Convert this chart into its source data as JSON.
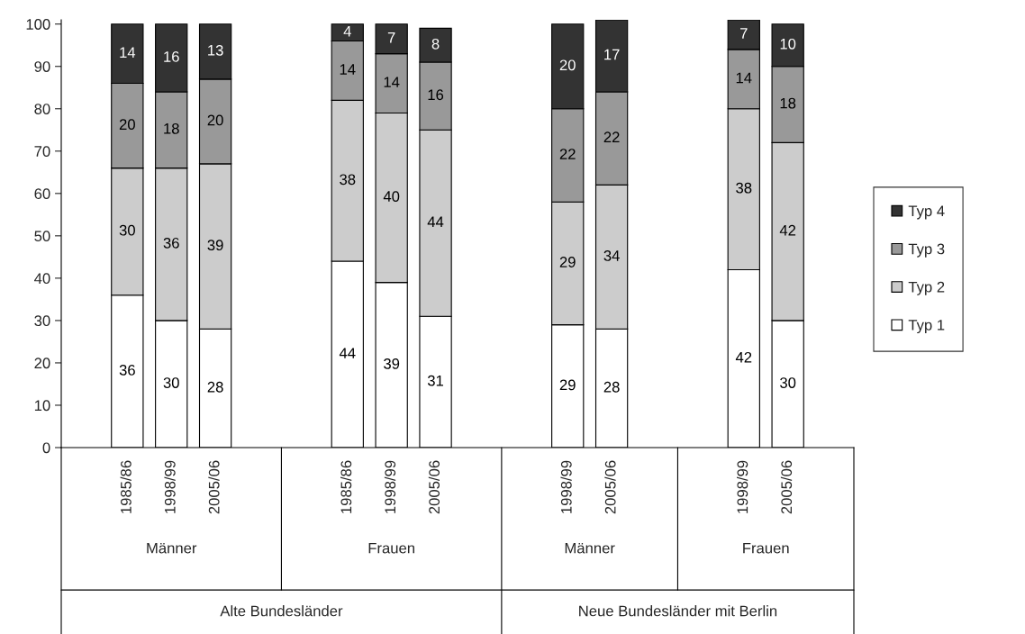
{
  "chart_data": {
    "type": "bar",
    "stacked": true,
    "data_labels": true,
    "legend": "right",
    "grid": false,
    "categories": [
      null,
      "1985/86",
      "1998/99",
      "2005/06",
      null,
      null,
      "1985/86",
      "1998/99",
      "2005/06",
      null,
      null,
      "1998/99",
      "2005/06",
      null,
      null,
      "1998/99",
      "2005/06",
      null
    ],
    "series": [
      {
        "name": "Typ 1",
        "color": "#ffffff",
        "values": [
          null,
          36,
          30,
          28,
          null,
          null,
          44,
          39,
          31,
          null,
          null,
          29,
          28,
          null,
          null,
          42,
          30,
          null
        ]
      },
      {
        "name": "Typ 2",
        "color": "#cccccc",
        "values": [
          null,
          30,
          36,
          39,
          null,
          null,
          38,
          40,
          44,
          null,
          null,
          29,
          34,
          null,
          null,
          38,
          42,
          null
        ]
      },
      {
        "name": "Typ 3",
        "color": "#999999",
        "values": [
          null,
          20,
          18,
          20,
          null,
          null,
          14,
          14,
          16,
          null,
          null,
          22,
          22,
          null,
          null,
          14,
          18,
          null
        ]
      },
      {
        "name": "Typ 4",
        "color": "#333333",
        "values": [
          null,
          14,
          16,
          13,
          null,
          null,
          4,
          7,
          8,
          null,
          null,
          20,
          17,
          null,
          null,
          7,
          10,
          null
        ]
      }
    ],
    "ylim": [
      0,
      101
    ],
    "yticks": [
      0,
      10,
      20,
      30,
      40,
      50,
      60,
      70,
      80,
      90,
      100
    ],
    "annotations": [
      "Männer",
      "Frauen",
      "Männer",
      "Frauen",
      "Alte Bundesländer",
      "Neue Bundesländer mit Berlin"
    ]
  }
}
